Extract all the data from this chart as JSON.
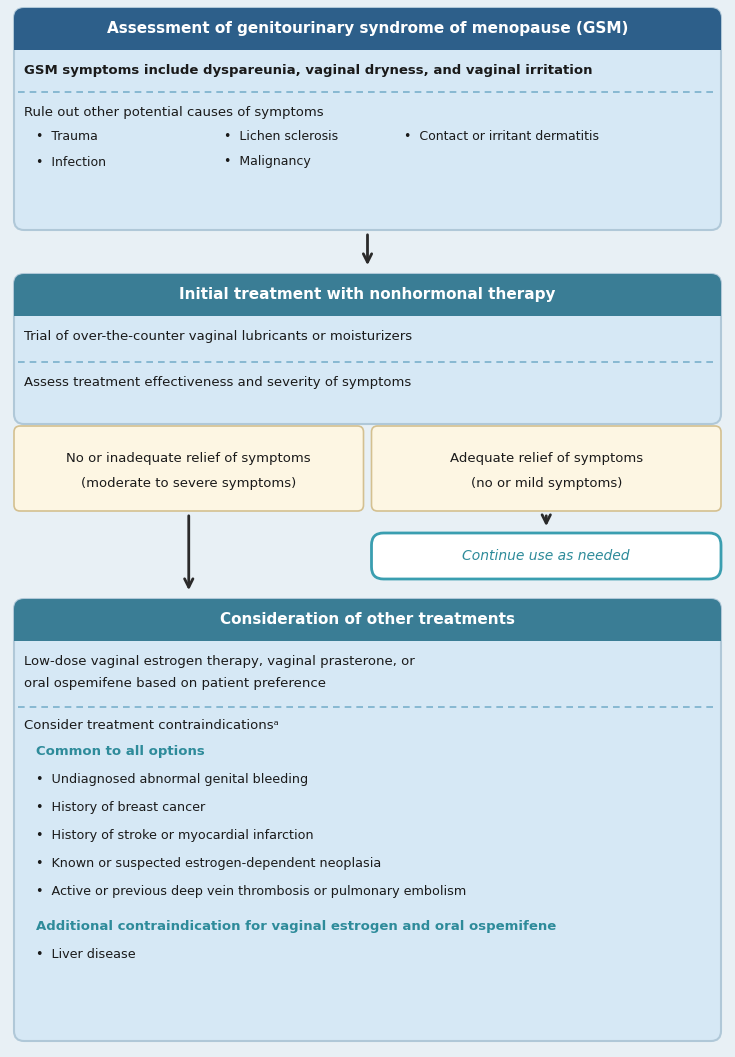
{
  "fig_width": 7.35,
  "fig_height": 10.57,
  "bg_color": "#e8f0f5",
  "header1_color": "#2d5f8a",
  "header23_color": "#3a7d95",
  "light_blue_bg": "#d6e8f5",
  "cream_bg": "#fdf6e3",
  "white_bg": "#ffffff",
  "arrow_color": "#2a2a2a",
  "teal_text": "#2e8b9a",
  "dark_text": "#1a1a1a",
  "dashed_color": "#7ab0cc",
  "box_edge_color": "#b0c8d8",
  "cream_edge_color": "#d4c090",
  "continue_edge": "#3a9eb0",
  "s1_header": "Assessment of genitourinary syndrome of menopause (GSM)",
  "s1_line1": "GSM symptoms include dyspareunia, vaginal dryness, and vaginal irritation",
  "s1_line2": "Rule out other potential causes of symptoms",
  "s1_col1": [
    "Trauma",
    "Infection"
  ],
  "s1_col2": [
    "Lichen sclerosis",
    "Malignancy"
  ],
  "s1_col3": [
    "Contact or irritant dermatitis"
  ],
  "s2_header": "Initial treatment with nonhormonal therapy",
  "s2_line1": "Trial of over-the-counter vaginal lubricants or moisturizers",
  "s2_line2": "Assess treatment effectiveness and severity of symptoms",
  "box_left_1": "No or inadequate relief of symptoms",
  "box_left_2": "(moderate to severe symptoms)",
  "box_right_1": "Adequate relief of symptoms",
  "box_right_2": "(no or mild symptoms)",
  "continue_text": "Continue use as needed",
  "s3_header": "Consideration of other treatments",
  "s3_line1a": "Low-dose vaginal estrogen therapy, vaginal prasterone, or",
  "s3_line1b": "oral ospemifene based on patient preference",
  "s3_line2": "Consider treatment contraindicationsᵃ",
  "common_header": "Common to all options",
  "common_bullets": [
    "Undiagnosed abnormal genital bleeding",
    "History of breast cancer",
    "History of stroke or myocardial infarction",
    "Known or suspected estrogen-dependent neoplasia",
    "Active or previous deep vein thrombosis or pulmonary embolism"
  ],
  "additional_header": "Additional contraindication for vaginal estrogen and oral ospemifene",
  "additional_bullets": [
    "Liver disease"
  ]
}
